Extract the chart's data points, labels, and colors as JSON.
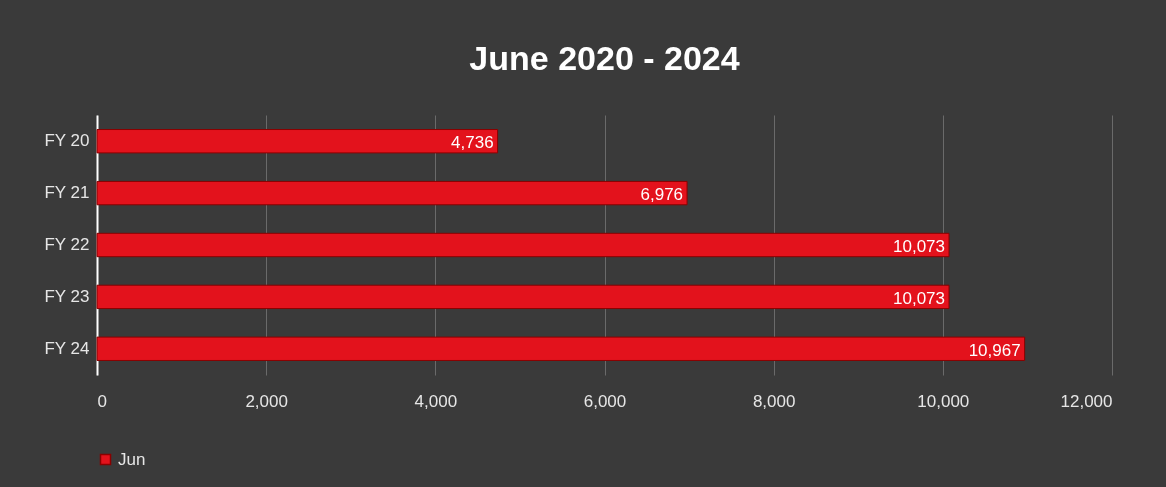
{
  "chart_data": {
    "type": "bar",
    "title": "June 2020 - 2024",
    "orientation": "horizontal",
    "categories": [
      "FY 20",
      "FY 21",
      "FY 22",
      "FY 23",
      "FY 24"
    ],
    "series": [
      {
        "name": "Jun",
        "color": "#e3121c",
        "values": [
          4736,
          6976,
          10073,
          10073,
          10967
        ],
        "value_labels": [
          "4,736",
          "6,976",
          "10,073",
          "10,073",
          "10,967"
        ]
      }
    ],
    "xlim": [
      0,
      12000
    ],
    "xticks": [
      0,
      {
        "value": 2000,
        "label": "2,000"
      },
      {
        "value": 4000,
        "label": "4,000"
      },
      {
        "value": 6000,
        "label": "6,000"
      },
      {
        "value": 8000,
        "label": "8,000"
      },
      {
        "value": 10000,
        "label": "10,000"
      },
      {
        "value": 12000,
        "label": "12,000"
      }
    ],
    "grid": "x",
    "legend": "bottom"
  }
}
